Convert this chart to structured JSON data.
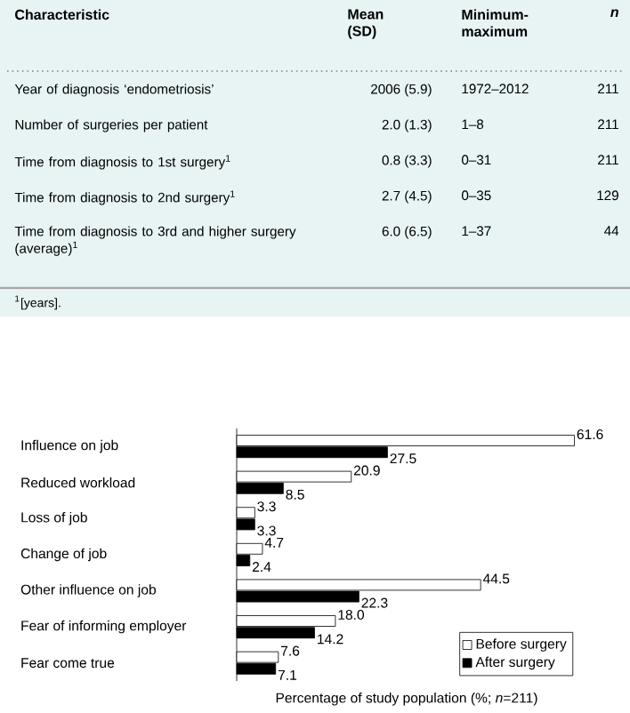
{
  "chart_data": [
    {
      "type": "other",
      "annotations": [
        "Characteristic",
        "Mean (SD)",
        "Minimum-maximum",
        "n",
        "Year of diagnosis ‘endometriosis’",
        "2006 (5.9)",
        "1972–2012",
        "211",
        "Number of surgeries per patient",
        "2.0 (1.3)",
        "1–8",
        "211",
        "Time from diagnosis to 1st surgery$^{1}$",
        "0.8 (3.3)",
        "0–31",
        "211",
        "Time from diagnosis to 2nd surgery$^{1}$",
        "2.7 (4.5)",
        "0–35",
        "129",
        "Time from diagnosis to 3rd and higher surgery (average)$^{1}$",
        "6.0 (6.5)",
        "1–37",
        "44",
        "$^{1}$[years]."
      ]
    },
    {
      "type": "bar",
      "orientation": "horizontal",
      "categories": [
        "Influence on job",
        "Reduced workload",
        "Loss of job",
        "Change of job",
        "Other influence on job",
        "Fear of informing employer",
        "Fear come true"
      ],
      "series": [
        {
          "name": "Before surgery",
          "color": "#ffffff",
          "values": [
            61.6,
            20.9,
            3.3,
            4.7,
            44.5,
            18.0,
            7.6
          ],
          "value_labels": [
            "61.6",
            "20.9",
            "3.3",
            "4.7",
            "44.5",
            "18.0",
            "7.6"
          ]
        },
        {
          "name": "After surgery",
          "color": "#000000",
          "values": [
            27.5,
            8.5,
            3.3,
            2.4,
            22.3,
            14.2,
            7.1
          ],
          "value_labels": [
            "27.5",
            "8.5",
            "3.3",
            "2.4",
            "22.3",
            "14.2",
            "7.1"
          ]
        }
      ],
      "legend": "bottom right",
      "xlim": [
        0,
        62
      ],
      "xlabel": "Percentage of study population (%; *n*=211)"
    }
  ]
}
